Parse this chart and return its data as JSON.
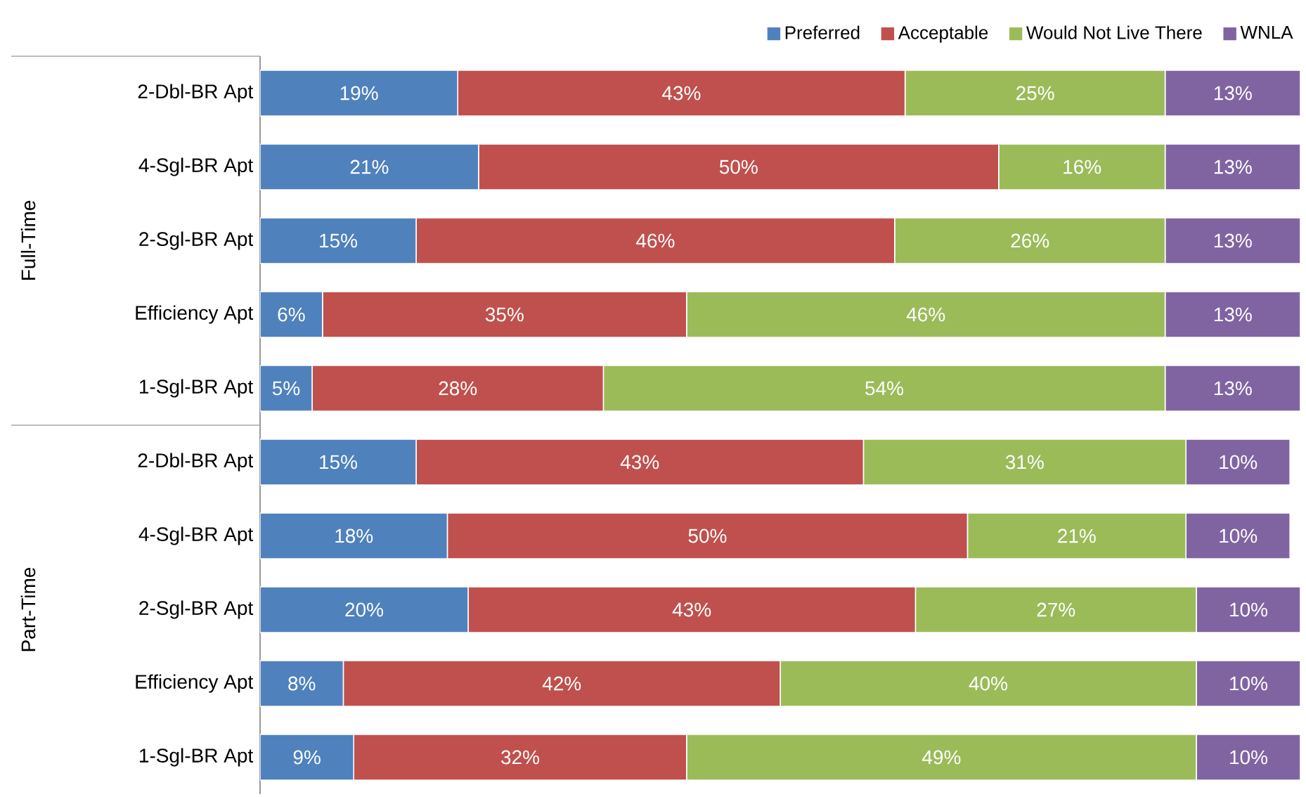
{
  "chart_data": {
    "type": "bar",
    "orientation": "horizontal",
    "stacked": true,
    "legend": "top right",
    "tick_labels": "y",
    "categories": [
      "2-Dbl-BR Apt",
      "4-Sgl-BR Apt",
      "2-Sgl-BR Apt",
      "Efficiency Apt",
      "1-Sgl-BR Apt",
      "2-Dbl-BR Apt",
      "4-Sgl-BR Apt",
      "2-Sgl-BR Apt",
      "Efficiency Apt",
      "1-Sgl-BR Apt"
    ],
    "annotations": [
      "Full-Time",
      "Part-Time"
    ],
    "series": [
      {
        "name": "Preferred",
        "color": "#4f81bd",
        "values": [
          19,
          21,
          15,
          6,
          5,
          15,
          18,
          20,
          8,
          9
        ],
        "value_labels": [
          "19%",
          "21%",
          "15%",
          "6%",
          "5%",
          "15%",
          "18%",
          "20%",
          "8%",
          "9%"
        ]
      },
      {
        "name": "Acceptable",
        "color": "#c0504d",
        "values": [
          43,
          50,
          46,
          35,
          28,
          43,
          50,
          43,
          42,
          32
        ],
        "value_labels": [
          "43%",
          "50%",
          "46%",
          "35%",
          "28%",
          "43%",
          "50%",
          "43%",
          "42%",
          "32%"
        ]
      },
      {
        "name": "Would Not Live There",
        "color": "#9bbb59",
        "values": [
          25,
          16,
          26,
          46,
          54,
          31,
          21,
          27,
          40,
          49
        ],
        "value_labels": [
          "25%",
          "16%",
          "26%",
          "46%",
          "54%",
          "31%",
          "21%",
          "27%",
          "40%",
          "49%"
        ]
      },
      {
        "name": "WNLA",
        "color": "#8064a2",
        "values": [
          13,
          13,
          13,
          13,
          13,
          10,
          10,
          10,
          10,
          10
        ],
        "value_labels": [
          "13%",
          "13%",
          "13%",
          "13%",
          "13%",
          "10%",
          "10%",
          "10%",
          "10%",
          "10%"
        ]
      }
    ]
  }
}
